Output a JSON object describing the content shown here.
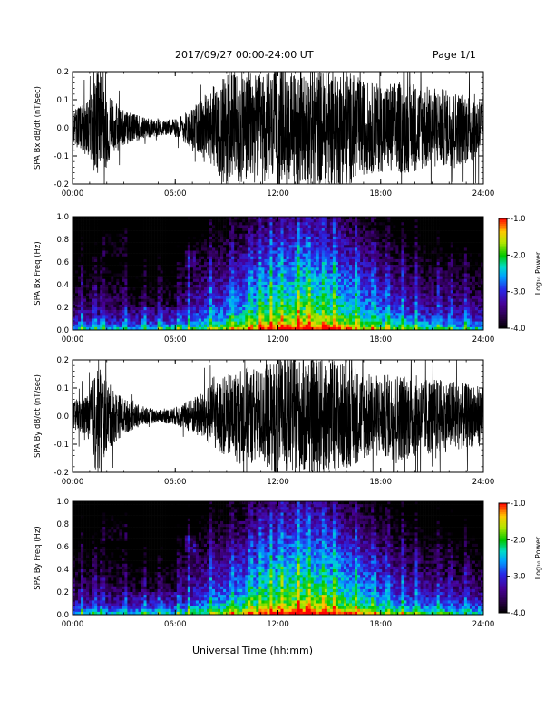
{
  "header": {
    "title": "2017/09/27  00:00-24:00 UT",
    "page": "Page 1/1"
  },
  "footer": {
    "xlabel": "Universal Time (hh:mm)"
  },
  "chart_data": [
    {
      "type": "line",
      "ylabel": "SPA Bx dB/dt (nT/sec)",
      "xlim": [
        0,
        24
      ],
      "ylim": [
        -0.2,
        0.2
      ],
      "x_ticks": [
        "00:00",
        "06:00",
        "12:00",
        "18:00",
        "24:00"
      ],
      "y_ticks": [
        "0.2",
        "0.1",
        "0.0",
        "-0.1",
        "-0.2"
      ],
      "envelope_hours": [
        0,
        1,
        1.5,
        2,
        3,
        4,
        5,
        6,
        7,
        8,
        9,
        10,
        11,
        12,
        13,
        14,
        15,
        16,
        17,
        18,
        19,
        20,
        21,
        22,
        23,
        24
      ],
      "envelope_amplitude": [
        0.06,
        0.1,
        0.2,
        0.12,
        0.06,
        0.04,
        0.025,
        0.03,
        0.07,
        0.12,
        0.2,
        0.2,
        0.18,
        0.2,
        0.2,
        0.2,
        0.2,
        0.2,
        0.16,
        0.15,
        0.16,
        0.15,
        0.14,
        0.13,
        0.12,
        0.11
      ]
    },
    {
      "type": "heatmap",
      "ylabel": "SPA Bx Freq (Hz)",
      "xlim": [
        0,
        24
      ],
      "ylim": [
        0,
        1
      ],
      "x_ticks": [
        "00:00",
        "06:00",
        "12:00",
        "18:00",
        "24:00"
      ],
      "y_ticks": [
        "1.0",
        "0.8",
        "0.6",
        "0.4",
        "0.2",
        "0.0"
      ],
      "colorbar": {
        "label": "Log₁₀ Power",
        "range": [
          -4,
          -1
        ],
        "ticks": [
          "-1.0",
          "-2.0",
          "-3.0",
          "-4.0"
        ]
      }
    },
    {
      "type": "line",
      "ylabel": "SPA By dB/dt (nT/sec)",
      "xlim": [
        0,
        24
      ],
      "ylim": [
        -0.2,
        0.2
      ],
      "x_ticks": [
        "00:00",
        "06:00",
        "12:00",
        "18:00",
        "24:00"
      ],
      "y_ticks": [
        "0.2",
        "0.1",
        "0.0",
        "-0.1",
        "-0.2"
      ],
      "envelope_hours": [
        0,
        1,
        1.5,
        2,
        3,
        4,
        5,
        6,
        7,
        8,
        9,
        10,
        11,
        12,
        13,
        14,
        15,
        16,
        17,
        18,
        19,
        20,
        21,
        22,
        23,
        24
      ],
      "envelope_amplitude": [
        0.05,
        0.08,
        0.2,
        0.12,
        0.06,
        0.035,
        0.02,
        0.03,
        0.06,
        0.1,
        0.14,
        0.17,
        0.16,
        0.2,
        0.2,
        0.2,
        0.2,
        0.18,
        0.15,
        0.14,
        0.15,
        0.14,
        0.13,
        0.12,
        0.11,
        0.1
      ]
    },
    {
      "type": "heatmap",
      "ylabel": "SPA By Freq (Hz)",
      "xlim": [
        0,
        24
      ],
      "ylim": [
        0,
        1
      ],
      "x_ticks": [
        "00:00",
        "06:00",
        "12:00",
        "18:00",
        "24:00"
      ],
      "y_ticks": [
        "1.0",
        "0.8",
        "0.6",
        "0.4",
        "0.2",
        "0.0"
      ],
      "colorbar": {
        "label": "Log₁₀ Power",
        "range": [
          -4,
          -1
        ],
        "ticks": [
          "-1.0",
          "-2.0",
          "-3.0",
          "-4.0"
        ]
      }
    }
  ]
}
